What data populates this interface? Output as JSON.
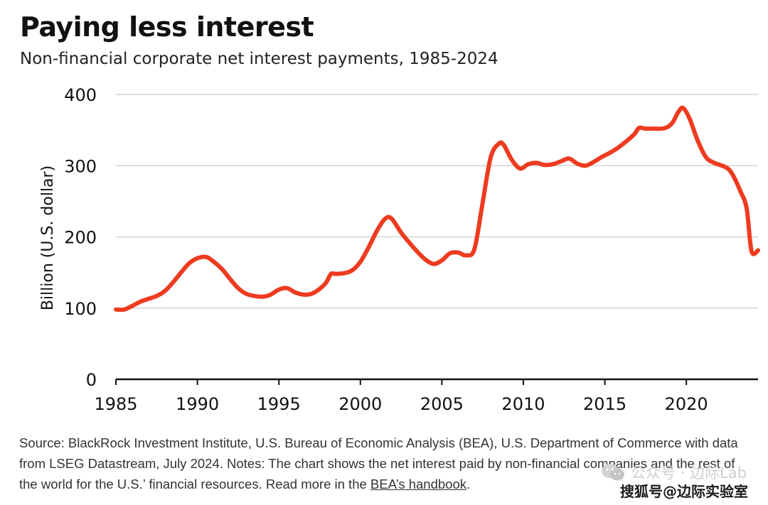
{
  "header": {
    "title": "Paying less interest",
    "subtitle": "Non-financial corporate net interest payments, 1985-2024"
  },
  "chart_data": {
    "type": "line",
    "title": "Paying less interest",
    "subtitle": "Non-financial corporate net interest payments, 1985-2024",
    "xlabel": "",
    "ylabel": "Billion (U.S. dollar)",
    "xlim": [
      1985,
      2024.4
    ],
    "ylim": [
      0,
      400
    ],
    "x_ticks": [
      "1985",
      "1990",
      "1995",
      "2000",
      "2005",
      "2010",
      "2015",
      "2020"
    ],
    "y_ticks": [
      "0",
      "100",
      "200",
      "300",
      "400"
    ],
    "grid": "horizontal",
    "line_color": "#ee3b1f",
    "series": [
      {
        "name": "",
        "x": [
          1985.0,
          1985.5,
          1986.0,
          1986.5,
          1987.0,
          1987.5,
          1988.0,
          1988.5,
          1989.0,
          1989.5,
          1990.0,
          1990.5,
          1990.9,
          1991.5,
          1992.0,
          1992.5,
          1993.0,
          1993.5,
          1994.0,
          1994.5,
          1995.0,
          1995.5,
          1996.0,
          1996.5,
          1997.0,
          1997.5,
          1997.9,
          1998.2,
          1998.5,
          1999.0,
          1999.5,
          2000.0,
          2000.5,
          2001.0,
          2001.5,
          2001.9,
          2002.5,
          2003.0,
          2003.5,
          2004.0,
          2004.5,
          2005.0,
          2005.5,
          2006.0,
          2006.5,
          2007.0,
          2007.5,
          2008.0,
          2008.5,
          2008.8,
          2009.3,
          2009.8,
          2010.3,
          2010.8,
          2011.3,
          2011.8,
          2012.3,
          2012.8,
          2013.3,
          2013.8,
          2014.3,
          2014.8,
          2015.3,
          2015.8,
          2016.3,
          2016.8,
          2017.1,
          2017.5,
          2018.0,
          2018.5,
          2018.9,
          2019.2,
          2019.5,
          2019.8,
          2020.2,
          2020.7,
          2021.2,
          2021.7,
          2022.2,
          2022.6,
          2022.9,
          2023.3,
          2023.7,
          2024.0,
          2024.4
        ],
        "values": [
          98,
          98,
          103,
          109,
          113,
          117,
          124,
          136,
          150,
          163,
          170,
          172,
          167,
          155,
          141,
          128,
          120,
          117,
          116,
          119,
          126,
          128,
          122,
          119,
          120,
          127,
          136,
          148,
          148,
          149,
          153,
          165,
          185,
          208,
          225,
          226,
          206,
          192,
          179,
          168,
          162,
          167,
          177,
          178,
          174,
          183,
          248,
          312,
          331,
          329,
          308,
          296,
          302,
          304,
          301,
          302,
          306,
          310,
          303,
          300,
          305,
          312,
          318,
          325,
          334,
          344,
          353,
          352,
          352,
          352,
          355,
          362,
          375,
          381,
          366,
          335,
          312,
          304,
          300,
          295,
          285,
          265,
          240,
          180,
          181
        ]
      }
    ]
  },
  "footnote": {
    "text": "Source: BlackRock Investment Institute, U.S. Bureau of Economic Analysis (BEA), U.S. Department of Commerce with data from LSEG Datastream, July 2024. Notes: The chart shows the net interest paid by non-financial companies and the rest of the world for the U.S.’ financial resources. Read more in the ",
    "link": "BEA’s handbook",
    "end": "."
  },
  "watermark": {
    "line1": "公众号 · 边际Lab",
    "line2": "搜狐号@边际实验室"
  }
}
